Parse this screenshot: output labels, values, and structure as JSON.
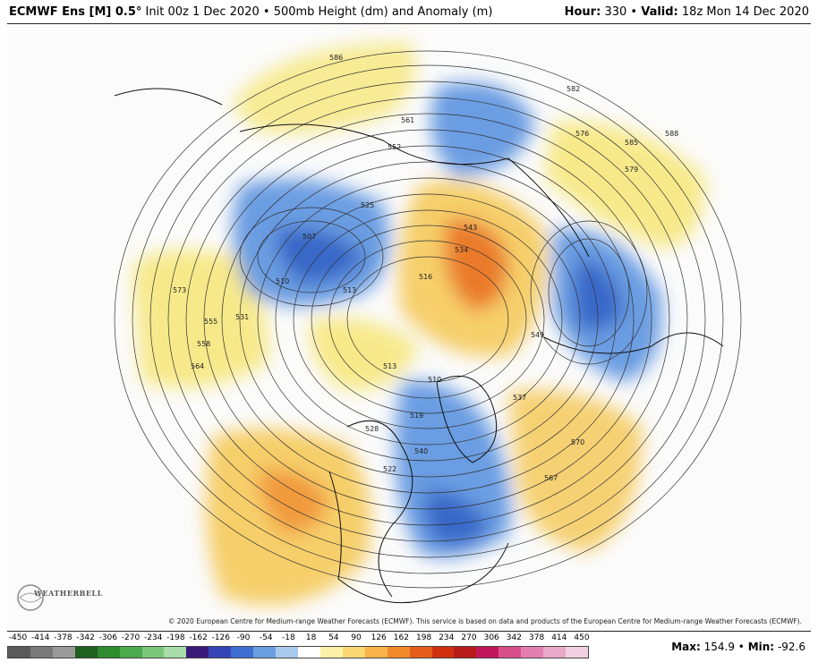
{
  "header": {
    "model": "ECMWF Ens [M] 0.5",
    "degree": "°",
    "init": "Init 00z 1 Dec 2020",
    "sep": "•",
    "field": "500mb Height (dm) and Anomaly (m)",
    "hour_label": "Hour:",
    "hour_value": "330",
    "valid_label": "Valid:",
    "valid_value": "18z Mon 14 Dec 2020"
  },
  "copyright": "© 2020 European Centre for Medium-range Weather Forecasts (ECMWF). This service is based on data and products of the European Centre for Medium-range Weather Forecasts (ECMWF).",
  "logo_text": "WEATHERBELL",
  "colorbar": {
    "ticks": [
      "-450",
      "-414",
      "-378",
      "-342",
      "-306",
      "-270",
      "-234",
      "-198",
      "-162",
      "-126",
      "-90",
      "-54",
      "-18",
      "18",
      "54",
      "90",
      "126",
      "162",
      "198",
      "234",
      "270",
      "306",
      "342",
      "378",
      "414",
      "450"
    ],
    "colors": [
      "#5a5a5a",
      "#7a7a7a",
      "#9a9a9a",
      "#1f5f1f",
      "#2e8b2e",
      "#4caa4c",
      "#7cc67c",
      "#a8dca8",
      "#3a1a7a",
      "#3545b8",
      "#3e6fd0",
      "#6a9ee0",
      "#a8c8ee",
      "#ffffff",
      "#fbf0a8",
      "#fbd774",
      "#f9b34a",
      "#f28a2a",
      "#e65c1a",
      "#d03010",
      "#b81a1a",
      "#c2185b",
      "#d84f8a",
      "#e27fae",
      "#e9a9c8",
      "#f1d0e2"
    ]
  },
  "max_label": "Max:",
  "max_value": "154.9",
  "min_label": "Min:",
  "min_value": "-92.6",
  "contour_labels": [
    "586",
    "561",
    "552",
    "582",
    "576",
    "585",
    "588",
    "579",
    "525",
    "507",
    "510",
    "513",
    "543",
    "534",
    "516",
    "573",
    "555",
    "558",
    "564",
    "531",
    "513",
    "549",
    "510",
    "528",
    "522",
    "540",
    "570",
    "567",
    "519",
    "537"
  ]
}
